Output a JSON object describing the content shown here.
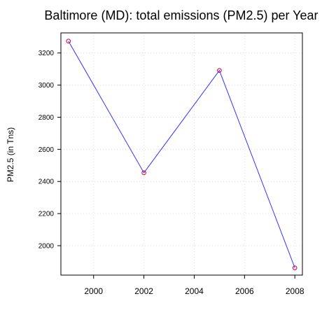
{
  "chart_data": {
    "type": "line",
    "title": "Baltimore (MD): total emissions (PM2.5) per Year",
    "xlabel": "",
    "ylabel": "PM2.5 (in Tns)",
    "x": [
      1999,
      2002,
      2005,
      2008
    ],
    "series": [
      {
        "values": [
          3274,
          2454,
          3091,
          1862
        ]
      }
    ],
    "xlim": [
      1998.7,
      2008.3
    ],
    "ylim": [
      1817,
      3325
    ],
    "xticks": [
      2000,
      2002,
      2004,
      2006,
      2008
    ],
    "yticks": [
      2000,
      2200,
      2400,
      2600,
      2800,
      3000,
      3200
    ],
    "grid": true,
    "legend": "none",
    "colors": {
      "line": "#3333ff",
      "points": "#cc0033",
      "grid": "#dddddd",
      "frame": "#000000"
    }
  }
}
